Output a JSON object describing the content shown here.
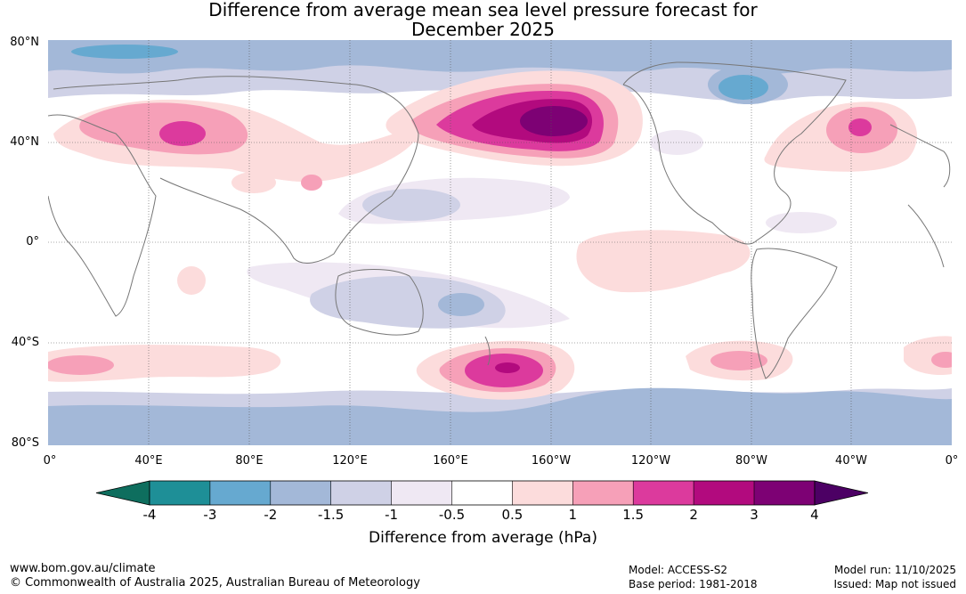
{
  "title_line1": "Difference from average mean sea level pressure forecast for",
  "title_line2": "December 2025",
  "lat_labels": [
    "80°N",
    "40°N",
    "0°",
    "40°S",
    "80°S"
  ],
  "lon_labels": [
    "0°",
    "40°E",
    "80°E",
    "120°E",
    "160°E",
    "160°W",
    "120°W",
    "80°W",
    "40°W",
    "0°"
  ],
  "colorbar": {
    "labels": [
      "-4",
      "-3",
      "-2",
      "-1.5",
      "-1",
      "-0.5",
      "0.5",
      "1",
      "1.5",
      "2",
      "3",
      "4"
    ],
    "colors": [
      "#0e6e5e",
      "#1e8f97",
      "#66a9d0",
      "#a3b8d8",
      "#cfd1e6",
      "#efe8f3",
      "#ffffff",
      "#fcdcdc",
      "#f6a0b8",
      "#dc3a9d",
      "#b20a7e",
      "#7d0174",
      "#4c0064"
    ],
    "title": "Difference from average (hPa)"
  },
  "footer": {
    "website": "www.bom.gov.au/climate",
    "copyright": "© Commonwealth of Australia 2025, Australian Bureau of Meteorology",
    "model": "Model: ACCESS-S2",
    "base_period": "Base period: 1981-2018",
    "model_run": "Model run: 11/10/2025",
    "issued": "Issued: Map not issued"
  }
}
